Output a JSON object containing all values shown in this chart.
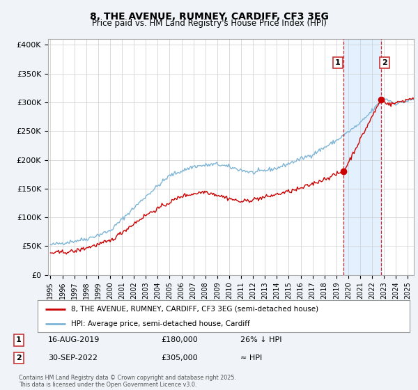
{
  "title": "8, THE AVENUE, RUMNEY, CARDIFF, CF3 3EG",
  "subtitle": "Price paid vs. HM Land Registry's House Price Index (HPI)",
  "ylabel_ticks": [
    "£0",
    "£50K",
    "£100K",
    "£150K",
    "£200K",
    "£250K",
    "£300K",
    "£350K",
    "£400K"
  ],
  "ytick_values": [
    0,
    50000,
    100000,
    150000,
    200000,
    250000,
    300000,
    350000,
    400000
  ],
  "ylim": [
    0,
    410000
  ],
  "xlim_start": 1994.8,
  "xlim_end": 2025.5,
  "xtick_years": [
    1995,
    1996,
    1997,
    1998,
    1999,
    2000,
    2001,
    2002,
    2003,
    2004,
    2005,
    2006,
    2007,
    2008,
    2009,
    2010,
    2011,
    2012,
    2013,
    2014,
    2015,
    2016,
    2017,
    2018,
    2019,
    2020,
    2021,
    2022,
    2023,
    2024,
    2025
  ],
  "property_color": "#cc0000",
  "hpi_color": "#7eb5d6",
  "annotation1_date": 2019.62,
  "annotation1_price": 180000,
  "annotation2_date": 2022.75,
  "annotation2_price": 305000,
  "legend_property": "8, THE AVENUE, RUMNEY, CARDIFF, CF3 3EG (semi-detached house)",
  "legend_hpi": "HPI: Average price, semi-detached house, Cardiff",
  "ann1_label": "1",
  "ann2_label": "2",
  "vline_color": "#cc0000",
  "shade_color": "#ddeeff",
  "background_color": "#f0f4f8",
  "plot_bg_color": "#ffffff",
  "grid_color": "#cccccc"
}
